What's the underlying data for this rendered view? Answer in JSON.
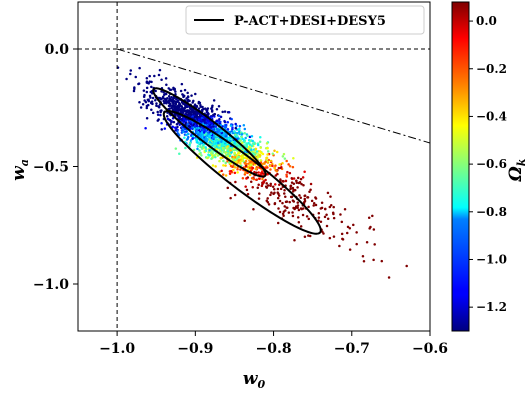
{
  "chart_data": {
    "type": "scatter",
    "xlabel": "w",
    "xlabel_subscript": "0",
    "ylabel": "w",
    "ylabel_subscript": "a",
    "colorbar_label": "Ω",
    "colorbar_label_subscript": "k",
    "xlim": [
      -1.05,
      -0.6
    ],
    "ylim": [
      -1.2,
      0.2
    ],
    "xticks": [
      -1.0,
      -0.9,
      -0.8,
      -0.7,
      -0.6
    ],
    "xtick_labels": [
      "−1.0",
      "−0.9",
      "−0.8",
      "−0.7",
      "−0.6"
    ],
    "yticks": [
      0.0,
      -0.5,
      -1.0
    ],
    "ytick_labels": [
      "0.0",
      "−0.5",
      "−1.0"
    ],
    "colorbar": {
      "colormap": "jet",
      "range": [
        -1.3,
        0.08
      ],
      "ticks": [
        0.0,
        -0.2,
        -0.4,
        -0.6,
        -0.8,
        -1.0,
        -1.2
      ],
      "tick_labels": [
        "0.0",
        "−0.2",
        "−0.4",
        "−0.6",
        "−0.8",
        "−1.0",
        "−1.2"
      ]
    },
    "legend": {
      "placement": "top-right",
      "entries": [
        {
          "label": "P-ACT+DESI+DESY5",
          "style": "solid black line"
        }
      ]
    },
    "reference_lines": [
      {
        "type": "vertical",
        "x": -1.0,
        "style": "dashed"
      },
      {
        "type": "horizontal",
        "y": 0.0,
        "style": "dashed"
      },
      {
        "type": "line",
        "from": [
          -1.0,
          0.0
        ],
        "to": [
          -0.6,
          -0.4
        ],
        "style": "dash-dot"
      }
    ],
    "contours": [
      {
        "level": "68%",
        "center": [
          -0.882,
          -0.355
        ],
        "axis_direction": [
          0.3,
          -0.815
        ],
        "semi_axis_major": 1.0,
        "semi_axis_minor": 0.021
      },
      {
        "level": "95%",
        "center": [
          -0.84,
          -0.525
        ],
        "axis_direction": [
          0.3,
          -0.815
        ],
        "semi_axis_major": 1.39,
        "semi_axis_minor": 0.031
      }
    ],
    "scatter_samples": {
      "description_omitted": true,
      "count": 2200,
      "center": [
        -0.885,
        -0.34
      ],
      "trend_direction": [
        0.3,
        -0.815
      ],
      "color_gradient": "blue (Omega_k ≈ -1.2) at upper-left to red (Omega_k ≈ 0) at lower-right"
    }
  },
  "colors": {
    "contour": "#000000",
    "reference_line": "#000000"
  }
}
